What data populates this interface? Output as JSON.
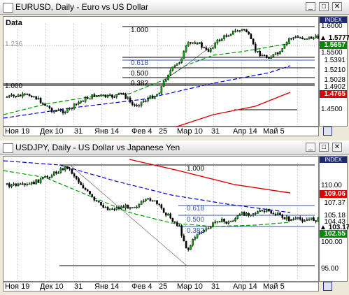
{
  "windows": [
    {
      "title": "EURUSD, Daily - Euro vs US Dollar",
      "data_label": "Data",
      "fib_labels": {
        "l100": "1.000",
        "l618": "0.618",
        "l500": "0.500",
        "l382": "0.382",
        "l236": "1.236",
        "l000": "1.000"
      },
      "scale": {
        "index": "INDEX",
        "labels": [
          "1.6000",
          "1.5500",
          "1.4500"
        ],
        "price_current": "1.5777",
        "price_green": "1.5657",
        "price_b1": "1.5391",
        "price_b2": "1.5210",
        "price_b3": "1.5028",
        "price_b4": "1.4902",
        "price_red": "1.4765"
      },
      "x_labels": [
        "Ноя 19",
        "Дек 10",
        "31",
        "Янв 14",
        "Фев 4",
        "25",
        "Мар 10",
        "31",
        "Апр 14",
        "Май 5"
      ]
    },
    {
      "title": "USDJPY, Daily - US Dollar vs Japanese Yen",
      "data_label": "",
      "fib_labels": {
        "l100": "1.000",
        "l618": "0.618",
        "l500": "0.500",
        "l382": "0.382"
      },
      "scale": {
        "index": "INDEX",
        "labels": [
          "110.00",
          "100.00",
          "95.00"
        ],
        "price_red": "109.06",
        "price_b1": "107.37",
        "price_b2": "105.18",
        "price_b3": "104.43",
        "price_current": "103.17",
        "price_green": "102.55"
      },
      "x_labels": [
        "Ноя 19",
        "Дек 10",
        "31",
        "Янв 14",
        "Фев 4",
        "25",
        "Мар 10",
        "31",
        "Апр 14",
        "Май 5"
      ]
    }
  ],
  "colors": {
    "bull": "#00aa00",
    "bear": "#000000",
    "ma_fast": "#0000cc",
    "ma_slow": "#dd0000",
    "ma_green": "#009900",
    "current": "#000000"
  }
}
